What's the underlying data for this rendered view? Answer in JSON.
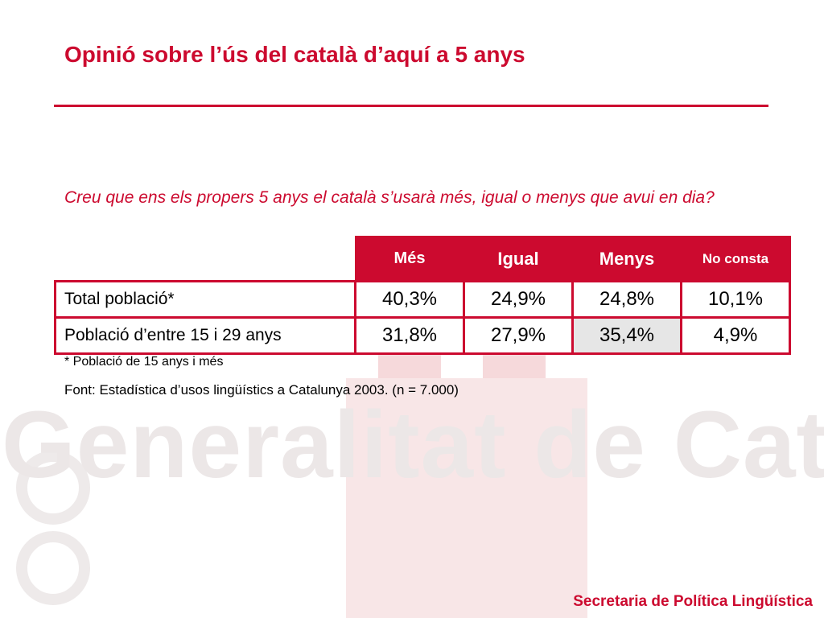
{
  "slide": {
    "title": "Opinió sobre l’ús del català d’aquí a 5 anys",
    "question": "Creu que ens els propers 5 anys el català s’usarà més, igual o menys que avui en dia?",
    "table": {
      "headers": [
        "Més",
        "Igual",
        "Menys",
        "No consta"
      ],
      "rows": [
        {
          "label": "Total població*",
          "values": [
            "40,3%",
            "24,9%",
            "24,8%",
            "10,1%"
          ]
        },
        {
          "label": "Població d’entre 15 i 29 anys",
          "values": [
            "31,8%",
            "27,9%",
            "35,4%",
            "4,9%"
          ]
        }
      ]
    },
    "footnote": "* Població de 15  anys i més",
    "source": "Font: Estadística d’usos lingüístics a Catalunya 2003. (n = 7.000)",
    "footer": "Secretaria de Política Lingüística"
  },
  "watermark": {
    "text": "Generalitat de Catalu"
  },
  "colors": {
    "accent": "#cc0a2f",
    "highlight_cell": "#e6e6e6"
  }
}
